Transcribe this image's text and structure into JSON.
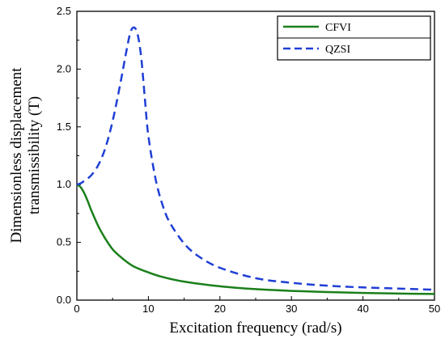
{
  "chart_data": {
    "type": "line",
    "title": "",
    "xlabel": "Excitation frequency (rad/s)",
    "ylabel_line1": "Dimensionless displacement",
    "ylabel_line2": "transmissibility (T)",
    "xlim": [
      0,
      50
    ],
    "ylim": [
      0,
      2.5
    ],
    "xticks": [
      "0",
      "10",
      "20",
      "30",
      "40",
      "50"
    ],
    "yticks": [
      "0.0",
      "0.5",
      "1.0",
      "1.5",
      "2.0",
      "2.5"
    ],
    "grid": false,
    "legend_position": "top-right",
    "series": [
      {
        "name": "CFVI",
        "color": "#1a7f1a",
        "dash": "solid",
        "x": [
          0,
          0.5,
          1,
          1.5,
          2,
          3,
          4,
          5,
          6,
          7,
          8,
          10,
          12,
          15,
          20,
          25,
          30,
          35,
          40,
          45,
          50
        ],
        "y": [
          1.0,
          0.98,
          0.93,
          0.86,
          0.78,
          0.64,
          0.53,
          0.44,
          0.38,
          0.33,
          0.29,
          0.24,
          0.2,
          0.16,
          0.12,
          0.095,
          0.08,
          0.07,
          0.062,
          0.057,
          0.053
        ]
      },
      {
        "name": "QZSI",
        "color": "#1f3fd6",
        "dash": "dashed",
        "x": [
          0,
          0.5,
          1,
          2,
          3,
          4,
          5,
          6,
          7,
          7.5,
          8,
          8.5,
          9,
          9.5,
          10,
          11,
          12,
          13,
          15,
          17,
          20,
          25,
          30,
          35,
          40,
          45,
          50
        ],
        "y": [
          1.0,
          1.01,
          1.03,
          1.08,
          1.17,
          1.32,
          1.55,
          1.85,
          2.18,
          2.32,
          2.36,
          2.3,
          2.1,
          1.75,
          1.42,
          1.05,
          0.82,
          0.67,
          0.49,
          0.38,
          0.28,
          0.19,
          0.15,
          0.125,
          0.11,
          0.1,
          0.09
        ]
      }
    ]
  }
}
